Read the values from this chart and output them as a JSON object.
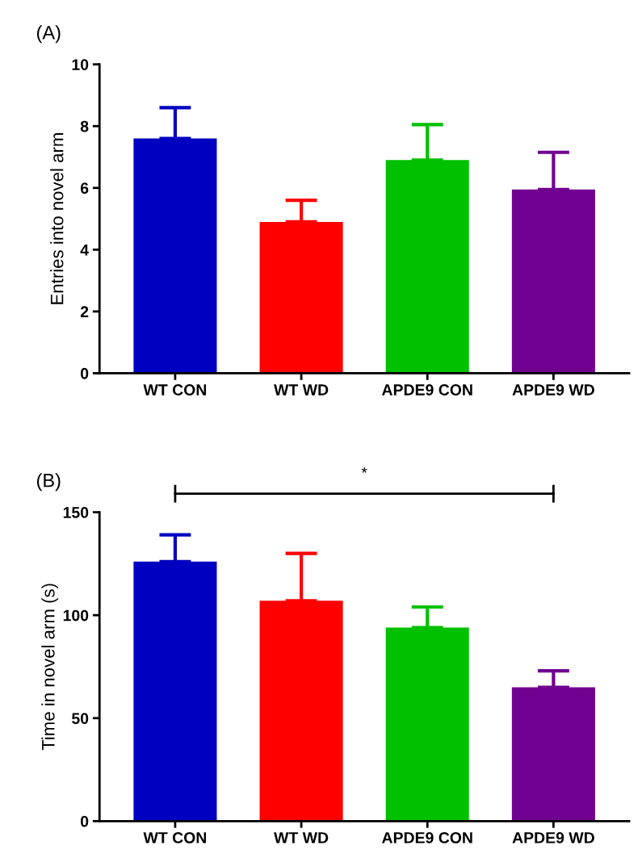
{
  "chart_data": [
    {
      "type": "bar",
      "title": "(A)",
      "ylabel": "Entries into novel arm",
      "categories": [
        "WT CON",
        "WT WD",
        "APDE9 CON",
        "APDE9 WD"
      ],
      "values": [
        7.6,
        4.9,
        6.9,
        5.95
      ],
      "errors": [
        [
          7.6,
          8.6
        ],
        [
          4.9,
          5.6
        ],
        [
          6.9,
          8.05
        ],
        [
          5.95,
          7.15
        ]
      ],
      "colors": [
        "#0000c0",
        "#ff0000",
        "#00c000",
        "#700090"
      ],
      "ylim": [
        0,
        10
      ],
      "yticks": [
        0,
        2,
        4,
        6,
        8,
        10
      ],
      "grid": false,
      "legend": false
    },
    {
      "type": "bar",
      "title": "(B)",
      "ylabel": "Time in novel arm (s)",
      "categories": [
        "WT CON",
        "WT WD",
        "APDE9 CON",
        "APDE9 WD"
      ],
      "values": [
        126,
        107,
        94,
        65
      ],
      "errors": [
        [
          126,
          139
        ],
        [
          107,
          130
        ],
        [
          94,
          104
        ],
        [
          65,
          73
        ]
      ],
      "colors": [
        "#0000c0",
        "#ff0000",
        "#00c000",
        "#700090"
      ],
      "ylim": [
        0,
        150
      ],
      "yticks": [
        0,
        50,
        100,
        150
      ],
      "grid": false,
      "legend": false,
      "annotations": [
        "*"
      ]
    }
  ]
}
